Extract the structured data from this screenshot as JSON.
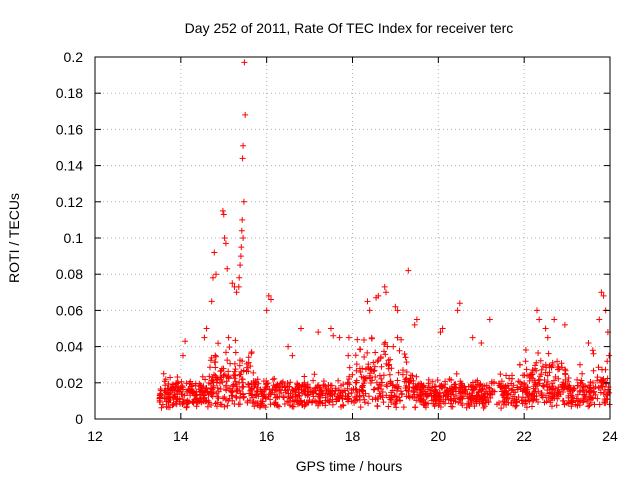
{
  "chart_data": {
    "type": "scatter",
    "title": "Day 252 of 2011, Rate Of TEC Index for receiver terc",
    "xlabel": "GPS time / hours",
    "ylabel": "ROTI / TECUs",
    "xlim": [
      12,
      24
    ],
    "ylim": [
      0,
      0.2
    ],
    "xticks": [
      "12",
      "14",
      "16",
      "18",
      "20",
      "22",
      "24"
    ],
    "yticks": [
      "0",
      "0.02",
      "0.04",
      "0.06",
      "0.08",
      "0.1",
      "0.12",
      "0.14",
      "0.16",
      "0.18",
      "0.2"
    ],
    "grid": true,
    "marker": "plus",
    "color": "#ff0000",
    "points": [
      [
        15.48,
        0.197
      ],
      [
        15.5,
        0.168
      ],
      [
        15.45,
        0.151
      ],
      [
        15.44,
        0.144
      ],
      [
        15.47,
        0.12
      ],
      [
        15.43,
        0.11
      ],
      [
        15.42,
        0.104
      ],
      [
        15.45,
        0.1
      ],
      [
        15.41,
        0.095
      ],
      [
        15.4,
        0.09
      ],
      [
        15.38,
        0.085
      ],
      [
        15.36,
        0.078
      ],
      [
        15.35,
        0.073
      ],
      [
        14.98,
        0.115
      ],
      [
        15.0,
        0.113
      ],
      [
        15.02,
        0.1
      ],
      [
        15.05,
        0.097
      ],
      [
        15.08,
        0.083
      ],
      [
        14.78,
        0.092
      ],
      [
        14.82,
        0.08
      ],
      [
        14.75,
        0.078
      ],
      [
        14.72,
        0.065
      ],
      [
        15.2,
        0.075
      ],
      [
        15.25,
        0.073
      ],
      [
        15.3,
        0.07
      ],
      [
        19.3,
        0.082
      ],
      [
        18.75,
        0.073
      ],
      [
        18.78,
        0.07
      ],
      [
        18.6,
        0.068
      ],
      [
        18.55,
        0.067
      ],
      [
        18.35,
        0.065
      ],
      [
        18.4,
        0.06
      ],
      [
        16.05,
        0.068
      ],
      [
        16.1,
        0.066
      ],
      [
        16.0,
        0.06
      ],
      [
        23.8,
        0.07
      ],
      [
        23.85,
        0.068
      ],
      [
        23.9,
        0.06
      ],
      [
        23.75,
        0.055
      ],
      [
        20.5,
        0.064
      ],
      [
        20.45,
        0.06
      ],
      [
        19.0,
        0.062
      ],
      [
        19.05,
        0.06
      ],
      [
        21.2,
        0.055
      ],
      [
        22.3,
        0.06
      ],
      [
        22.35,
        0.055
      ],
      [
        22.7,
        0.055
      ],
      [
        22.95,
        0.052
      ],
      [
        19.5,
        0.055
      ],
      [
        19.45,
        0.052
      ],
      [
        14.6,
        0.05
      ],
      [
        14.55,
        0.045
      ],
      [
        16.8,
        0.05
      ],
      [
        17.2,
        0.048
      ],
      [
        17.5,
        0.05
      ],
      [
        17.55,
        0.046
      ],
      [
        17.7,
        0.045
      ],
      [
        20.1,
        0.05
      ],
      [
        20.05,
        0.048
      ],
      [
        20.8,
        0.045
      ],
      [
        21.0,
        0.042
      ],
      [
        22.5,
        0.05
      ],
      [
        22.55,
        0.045
      ],
      [
        23.5,
        0.042
      ],
      [
        23.95,
        0.048
      ],
      [
        23.98,
        0.035
      ],
      [
        13.6,
        0.025
      ],
      [
        13.65,
        0.022
      ],
      [
        14.1,
        0.043
      ],
      [
        14.05,
        0.035
      ],
      [
        16.5,
        0.04
      ],
      [
        16.6,
        0.035
      ],
      [
        17.9,
        0.035
      ],
      [
        18.95,
        0.04
      ],
      [
        21.9,
        0.03
      ],
      [
        23.3,
        0.03
      ],
      [
        23.35,
        0.025
      ],
      [
        23.6,
        0.038
      ],
      [
        23.9,
        0.02
      ],
      [
        23.95,
        0.015
      ],
      [
        23.99,
        0.008
      ],
      [
        23.2,
        0.008
      ],
      [
        23.1,
        0.007
      ],
      [
        22.9,
        0.01
      ]
    ]
  }
}
